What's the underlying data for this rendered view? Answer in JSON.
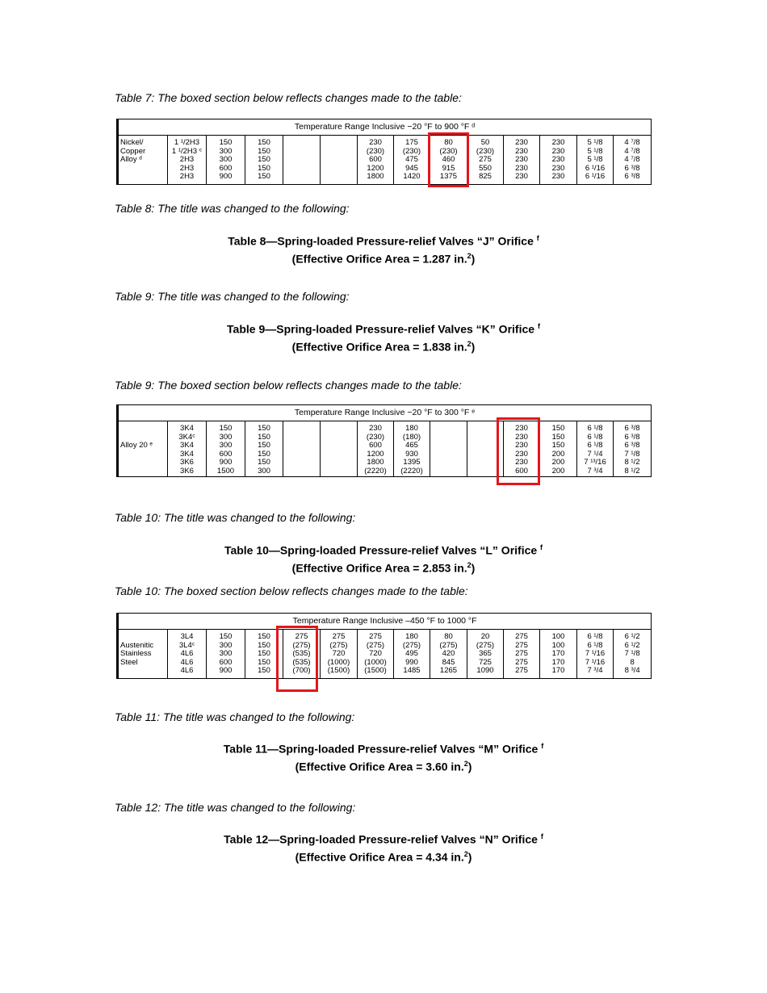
{
  "notes": [
    "Table 7: The boxed section below reflects changes made to the table:",
    "Table 8: The title was changed to the following:",
    "Table 9: The title was changed to the following:",
    "Table 9: The boxed section below reflects changes made to the table:",
    "Table 10: The title was changed to the following:",
    "Table 10: The boxed section below reflects changes made to the table:",
    "Table 11: The title was changed to the following:",
    "Table 12: The title was changed to the following:"
  ],
  "titles": [
    {
      "line1": "Table 8—Spring-loaded Pressure-relief Valves “J” Orifice ",
      "sup": "f",
      "line2": "(Effective Orifice Area = 1.287 in.",
      "exp": "2"
    },
    {
      "line1": "Table 9—Spring-loaded Pressure-relief Valves “K” Orifice ",
      "sup": "f",
      "line2": "(Effective Orifice Area = 1.838 in.",
      "exp": "2"
    },
    {
      "line1": "Table 10—Spring-loaded Pressure-relief Valves “L” Orifice ",
      "sup": "f",
      "line2": "(Effective Orifice Area = 2.853 in.",
      "exp": "2"
    },
    {
      "line1": "Table 11—Spring-loaded Pressure-relief Valves “M” Orifice ",
      "sup": "f",
      "line2": "(Effective Orifice Area = 3.60 in.",
      "exp": "2"
    },
    {
      "line1": "Table 12—Spring-loaded Pressure-relief Valves “N” Orifice ",
      "sup": "f",
      "line2": "(Effective Orifice Area = 4.34 in.",
      "exp": "2"
    }
  ],
  "highlight_color": "#e3161c",
  "tables": [
    {
      "header": "Temperature Range Inclusive −20 °F to 900 °F ᵈ",
      "cells": [
        "Nickel/\nCopper\nAlloy ᵈ",
        "1 ¹/2H3\n1 ¹/2H3 ᶜ\n2H3\n2H3\n2H3",
        "150\n300\n300\n600\n900",
        "150\n150\n150\n150\n150",
        "",
        "",
        "230\n(230)\n600\n1200\n1800",
        "175\n(230)\n475\n945\n1420",
        "80\n(230)\n460\n915\n1375",
        "50\n(230)\n275\n550\n825",
        "230\n230\n230\n230\n230",
        "230\n230\n230\n230\n230",
        "5 ¹/8\n5 ¹/8\n5 ¹/8\n6 ¹/16\n6 ¹/16",
        "4 ⁷/8\n4 ⁷/8\n4 ⁷/8\n6 ³/8\n6 ³/8"
      ],
      "boxed_column": 8
    },
    {
      "header": "Temperature Range Inclusive −20 °F to 300 °F ᵉ",
      "cells": [
        "\n\nAlloy 20 ᵉ",
        "3K4\n3K4ᶜ\n3K4\n3K4\n3K6\n3K6",
        "150\n300\n300\n600\n900\n1500",
        "150\n150\n150\n150\n150\n300",
        "",
        "",
        "230\n(230)\n600\n1200\n1800\n(2220)",
        "180\n(180)\n465\n930\n1395\n(2220)",
        "",
        "",
        "230\n230\n230\n230\n230\n600",
        "150\n150\n150\n200\n200\n200",
        "6 ¹/8\n6 ¹/8\n6 ¹/8\n7 ¹/4\n7 ¹³/16\n7 ³/4",
        "6 ³/8\n6 ³/8\n6 ³/8\n7 ¹/8\n8 ¹/2\n8 ¹/2"
      ],
      "boxed_column": 10
    },
    {
      "header": "Temperature Range Inclusive –450 °F to 1000 °F",
      "cells": [
        "\nAustenitic\nStainless\nSteel",
        "3L4\n3L4ᶜ\n4L6\n4L6\n4L6",
        "150\n300\n300\n600\n900",
        "150\n150\n150\n150\n150",
        "275\n(275)\n(535)\n(535)\n(700)",
        "275\n(275)\n720\n(1000)\n(1500)",
        "275\n(275)\n720\n(1000)\n(1500)",
        "180\n(275)\n495\n990\n1485",
        "80\n(275)\n420\n845\n1265",
        "20\n(275)\n365\n725\n1090",
        "275\n275\n275\n275\n275",
        "100\n100\n170\n170\n170",
        "6 ¹/8\n6 ¹/8\n7 ¹/16\n7 ¹/16\n7 ³/4",
        "6 ¹/2\n6 ¹/2\n7 ¹/8\n8\n8 ³/4"
      ],
      "boxed_column": 4
    }
  ]
}
